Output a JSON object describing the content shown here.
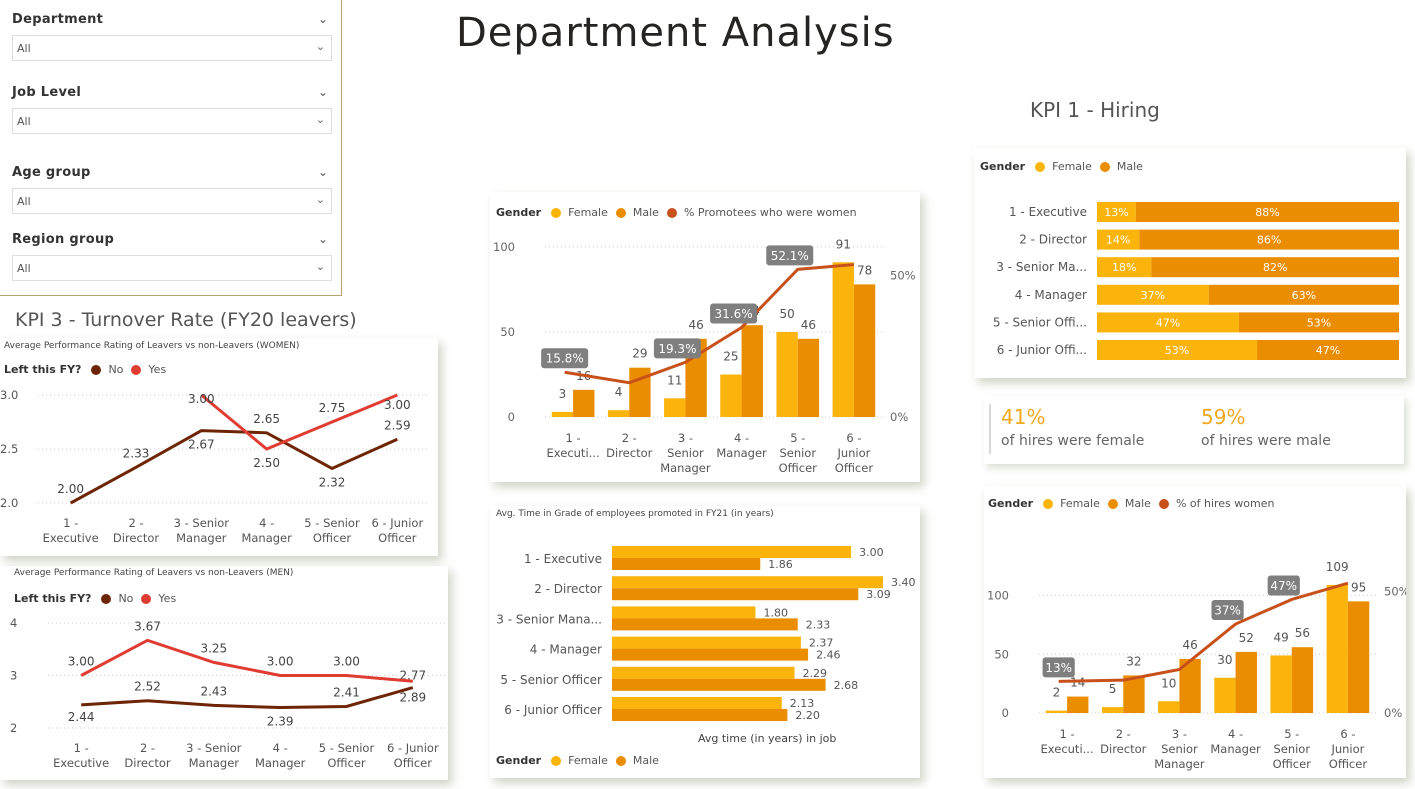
{
  "page_title": "Department Analysis",
  "slicers": [
    {
      "label": "Department",
      "value": "All"
    },
    {
      "label": "Job Level",
      "value": "All"
    },
    {
      "label": "Age group",
      "value": "All"
    },
    {
      "label": "Region group",
      "value": "All"
    }
  ],
  "kpi1_title": "KPI 1 - Hiring",
  "kpi3_title": "KPI 3 - Turnover Rate (FY20 leavers)",
  "colors": {
    "female": "#fbb40b",
    "male": "#ea8d00",
    "line": "#c8511b",
    "no": "#6e2506",
    "yes": "#e03c31",
    "badge": "#7f7f7f"
  },
  "promotion_chart": {
    "legend": {
      "title": "Gender",
      "female": "Female",
      "male": "Male",
      "pct": "% Promotees who were women"
    }
  },
  "women_chart": {
    "title": "Average Performance Rating of Leavers vs non-Leavers (WOMEN)",
    "legend": {
      "title": "Left this FY?",
      "no": "No",
      "yes": "Yes"
    }
  },
  "men_chart": {
    "title": "Average Performance Rating of Leavers vs non-Leavers (MEN)",
    "legend": {
      "title": "Left this FY?",
      "no": "No",
      "yes": "Yes"
    }
  },
  "time_chart": {
    "title": "Avg. Time in Grade of employees promoted in FY21 (in years)",
    "xlabel": "Avg time (in years) in job",
    "legend": {
      "title": "Gender",
      "female": "Female",
      "male": "Male"
    }
  },
  "hiring_share_chart": {
    "legend": {
      "title": "Gender",
      "female": "Female",
      "male": "Male"
    }
  },
  "kpi_cards": [
    {
      "value": "41%",
      "label": "of hires were female"
    },
    {
      "value": "59%",
      "label": "of hires were male"
    }
  ],
  "hires_chart": {
    "legend": {
      "title": "Gender",
      "female": "Female",
      "male": "Male",
      "pct": "% of hires women"
    }
  },
  "chart_data": [
    {
      "id": "promotions",
      "type": "bar",
      "categories": [
        [
          "1 -",
          "Executi..."
        ],
        [
          "2 -",
          "Director"
        ],
        [
          "3 -",
          "Senior",
          "Manager"
        ],
        [
          "4 -",
          "Manager"
        ],
        [
          "5 -",
          "Senior",
          "Officer"
        ],
        [
          "6 -",
          "Junior",
          "Officer"
        ]
      ],
      "series": [
        {
          "name": "Female",
          "values": [
            3,
            4,
            11,
            25,
            50,
            91
          ]
        },
        {
          "name": "Male",
          "values": [
            16,
            29,
            46,
            54,
            46,
            78
          ]
        },
        {
          "name": "% Promotees who were women",
          "values": [
            15.8,
            12.1,
            19.3,
            31.6,
            52.1,
            53.8
          ],
          "labels": [
            "15.8%",
            "",
            "19.3%",
            "31.6%",
            "52.1%",
            ""
          ]
        }
      ],
      "yticks": [
        "100",
        "50",
        "0"
      ],
      "y2ticks": [
        "50%",
        "0%"
      ],
      "ylim": [
        0,
        100
      ],
      "y2lim": [
        0,
        60
      ]
    },
    {
      "id": "women_rating",
      "type": "line",
      "categories": [
        [
          "1 -",
          "Executive"
        ],
        [
          "2 -",
          "Director"
        ],
        [
          "3 - Senior",
          "Manager"
        ],
        [
          "4 -",
          "Manager"
        ],
        [
          "5 - Senior",
          "Officer"
        ],
        [
          "6 - Junior",
          "Officer"
        ]
      ],
      "series": [
        {
          "name": "No",
          "values": [
            2.0,
            2.33,
            2.67,
            2.65,
            2.32,
            2.59
          ],
          "labels": [
            "2.00",
            "2.33",
            "2.67",
            "2.65",
            "2.32",
            "2.59"
          ]
        },
        {
          "name": "Yes",
          "values": [
            null,
            null,
            3.0,
            2.5,
            2.75,
            3.0
          ],
          "labels": [
            "",
            "",
            "3.00",
            "2.50",
            "2.75",
            "3.00"
          ]
        }
      ],
      "yticks": [
        "3.0",
        "2.5",
        "2.0"
      ],
      "ylim": [
        2.0,
        3.0
      ]
    },
    {
      "id": "men_rating",
      "type": "line",
      "categories": [
        [
          "1 -",
          "Executive"
        ],
        [
          "2 -",
          "Director"
        ],
        [
          "3 - Senior",
          "Manager"
        ],
        [
          "4 -",
          "Manager"
        ],
        [
          "5 - Senior",
          "Officer"
        ],
        [
          "6 - Junior",
          "Officer"
        ]
      ],
      "series": [
        {
          "name": "No",
          "values": [
            2.44,
            2.52,
            2.43,
            2.39,
            2.41,
            2.77
          ],
          "labels": [
            "2.44",
            "2.52",
            "2.43",
            "2.39",
            "2.41",
            "2.77"
          ]
        },
        {
          "name": "Yes",
          "values": [
            3.0,
            3.67,
            3.25,
            3.0,
            3.0,
            2.89
          ],
          "labels": [
            "3.00",
            "3.67",
            "3.25",
            "3.00",
            "3.00",
            "2.89"
          ]
        }
      ],
      "yticks": [
        "4",
        "3",
        "2"
      ],
      "ylim": [
        2,
        4
      ]
    },
    {
      "id": "time_in_grade",
      "type": "bar",
      "orientation": "horizontal",
      "categories": [
        "1 - Executive",
        "2 - Director",
        "3 - Senior Mana...",
        "4 - Manager",
        "5 - Senior Officer",
        "6 - Junior Officer"
      ],
      "series": [
        {
          "name": "Female",
          "values": [
            3.0,
            3.4,
            1.8,
            2.37,
            2.29,
            2.13
          ],
          "labels": [
            "3.00",
            "3.40",
            "1.80",
            "2.37",
            "2.29",
            "2.13"
          ]
        },
        {
          "name": "Male",
          "values": [
            1.86,
            3.09,
            2.33,
            2.46,
            2.68,
            2.2
          ],
          "labels": [
            "1.86",
            "3.09",
            "2.33",
            "2.46",
            "2.68",
            "2.20"
          ]
        }
      ],
      "xlim": [
        0,
        3.4
      ]
    },
    {
      "id": "hiring_share",
      "type": "bar",
      "orientation": "horizontal",
      "stacked": true,
      "categories": [
        "1 - Executive",
        "2 - Director",
        "3 - Senior Ma...",
        "4 - Manager",
        "5 - Senior Offi...",
        "6 - Junior Offi..."
      ],
      "series": [
        {
          "name": "Female",
          "values": [
            13,
            14,
            18,
            37,
            47,
            53
          ],
          "labels": [
            "13%",
            "14%",
            "18%",
            "37%",
            "47%",
            "53%"
          ]
        },
        {
          "name": "Male",
          "values": [
            88,
            86,
            82,
            63,
            53,
            47
          ],
          "labels": [
            "88%",
            "86%",
            "82%",
            "63%",
            "53%",
            "47%"
          ]
        }
      ]
    },
    {
      "id": "hires",
      "type": "bar",
      "categories": [
        [
          "1 -",
          "Executi..."
        ],
        [
          "2 -",
          "Director"
        ],
        [
          "3 -",
          "Senior",
          "Manager"
        ],
        [
          "4 -",
          "Manager"
        ],
        [
          "5 -",
          "Senior",
          "Officer"
        ],
        [
          "6 -",
          "Junior",
          "Officer"
        ]
      ],
      "series": [
        {
          "name": "Female",
          "values": [
            2,
            5,
            10,
            30,
            49,
            109
          ]
        },
        {
          "name": "Male",
          "values": [
            14,
            32,
            46,
            52,
            56,
            95
          ]
        },
        {
          "name": "% of hires women",
          "values": [
            13,
            13.5,
            17.9,
            36.6,
            46.7,
            53.4
          ],
          "labels": [
            "13%",
            "",
            "",
            "37%",
            "47%",
            ""
          ]
        }
      ],
      "yticks": [
        "100",
        "50",
        "0"
      ],
      "y2ticks": [
        "50%",
        "0%"
      ],
      "ylim": [
        0,
        120
      ],
      "y2lim": [
        0,
        58
      ]
    }
  ]
}
